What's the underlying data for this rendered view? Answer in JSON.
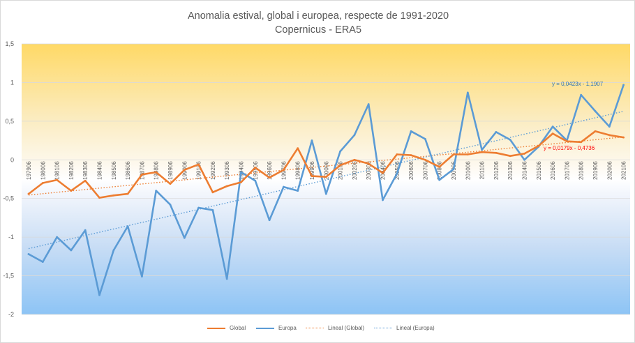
{
  "chart_data": {
    "type": "line",
    "title": "Anomalia estival, global i europea, respecte de 1991-2020",
    "subtitle": "Copernicus - ERA5",
    "ylim": [
      -2,
      1.5
    ],
    "yticks": [
      "1,5",
      "1",
      "0,5",
      "0",
      "-0,5",
      "-1",
      "-1,5",
      "-2"
    ],
    "ytick_values": [
      1.5,
      1,
      0.5,
      0,
      -0.5,
      -1,
      -1.5,
      -2
    ],
    "categories": [
      "197906",
      "198006",
      "198106",
      "198206",
      "198306",
      "198406",
      "198506",
      "198606",
      "198706",
      "198806",
      "198906",
      "199006",
      "199106",
      "199206",
      "199306",
      "199406",
      "199506",
      "199606",
      "199706",
      "199806",
      "199906",
      "200006",
      "200106",
      "200206",
      "200306",
      "200406",
      "200506",
      "200606",
      "200706",
      "200806",
      "200906",
      "201006",
      "201106",
      "201206",
      "201306",
      "201406",
      "201506",
      "201606",
      "201706",
      "201806",
      "201906",
      "202006",
      "202106"
    ],
    "series": [
      {
        "name": "Global",
        "color": "#ED7D31",
        "values": [
          -0.44,
          -0.3,
          -0.26,
          -0.4,
          -0.27,
          -0.49,
          -0.46,
          -0.44,
          -0.19,
          -0.16,
          -0.31,
          -0.13,
          -0.06,
          -0.42,
          -0.34,
          -0.29,
          -0.1,
          -0.23,
          -0.13,
          0.15,
          -0.21,
          -0.22,
          -0.07,
          0.0,
          -0.05,
          -0.17,
          0.07,
          0.06,
          0.0,
          -0.09,
          0.07,
          0.07,
          0.1,
          0.09,
          0.05,
          0.08,
          0.18,
          0.34,
          0.24,
          0.23,
          0.37,
          0.32,
          0.29
        ]
      },
      {
        "name": "Europa",
        "color": "#5B9BD5",
        "values": [
          -1.22,
          -1.32,
          -1.0,
          -1.17,
          -0.91,
          -1.75,
          -1.17,
          -0.86,
          -1.51,
          -0.4,
          -0.58,
          -1.01,
          -0.62,
          -0.65,
          -1.54,
          -0.16,
          -0.27,
          -0.78,
          -0.35,
          -0.4,
          0.25,
          -0.44,
          0.11,
          0.32,
          0.72,
          -0.52,
          -0.18,
          0.37,
          0.27,
          -0.26,
          -0.12,
          0.87,
          0.13,
          0.36,
          0.26,
          0.0,
          0.17,
          0.43,
          0.25,
          0.84,
          0.63,
          0.43,
          0.97
        ]
      }
    ],
    "trendlines": [
      {
        "name": "Lineal  (Global)",
        "color": "#ED7D31",
        "slope": 0.0179,
        "intercept": -0.4736,
        "equation": "y = 0,0179x - 0,4736",
        "equation_color": "#FF0000"
      },
      {
        "name": "Lineal  (Europa)",
        "color": "#5B9BD5",
        "slope": 0.0423,
        "intercept": -1.1907,
        "equation": "y = 0,0423x - 1,1907",
        "equation_color": "#2E75B6"
      }
    ],
    "legend": [
      "Global",
      "Europa",
      "Lineal  (Global)",
      "Lineal  (Europa)"
    ],
    "legend_position": "bottom",
    "grid": true
  }
}
